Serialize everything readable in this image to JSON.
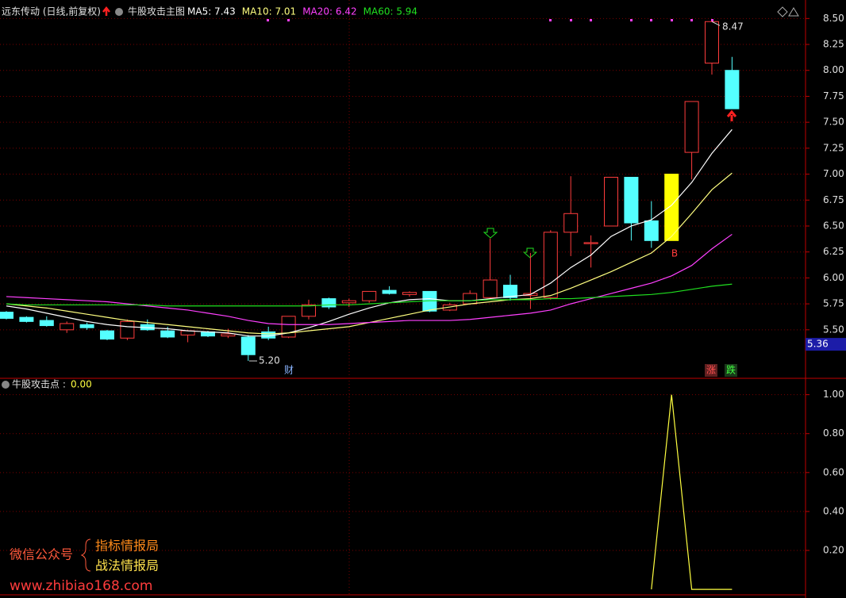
{
  "chart_data": [
    {
      "type": "candlestick",
      "title": "远东传动 (日线,前复权)",
      "indicator": "牛股攻击主图",
      "open": [
        5.67,
        5.62,
        5.59,
        5.5,
        5.55,
        5.49,
        5.42,
        5.55,
        5.49,
        5.45,
        5.48,
        5.44,
        5.43,
        5.48,
        5.43,
        5.63,
        5.8,
        5.76,
        5.78,
        5.88,
        5.84,
        5.87,
        5.69,
        5.75,
        5.81,
        5.93,
        5.83,
        5.81,
        6.44,
        6.33,
        6.5,
        6.97,
        6.55,
        6.36,
        7.21,
        8.07,
        8.0
      ],
      "high": [
        5.68,
        5.63,
        5.63,
        5.58,
        5.57,
        5.5,
        5.6,
        5.6,
        5.53,
        5.5,
        5.49,
        5.51,
        5.45,
        5.53,
        5.63,
        5.79,
        5.81,
        5.8,
        5.87,
        5.92,
        5.87,
        5.87,
        5.76,
        5.88,
        6.38,
        6.03,
        6.24,
        6.46,
        6.98,
        6.41,
        6.97,
        6.97,
        6.74,
        7.0,
        7.7,
        8.47,
        8.13
      ],
      "low": [
        5.6,
        5.57,
        5.53,
        5.47,
        5.5,
        5.4,
        5.4,
        5.49,
        5.42,
        5.38,
        5.43,
        5.42,
        5.2,
        5.4,
        5.42,
        5.6,
        5.7,
        5.72,
        5.76,
        5.84,
        5.82,
        5.67,
        5.68,
        5.74,
        5.8,
        5.78,
        5.7,
        5.79,
        6.21,
        6.1,
        6.5,
        6.36,
        6.29,
        6.36,
        6.95,
        7.96,
        7.63
      ],
      "close": [
        5.61,
        5.58,
        5.54,
        5.56,
        5.52,
        5.41,
        5.58,
        5.5,
        5.43,
        5.49,
        5.44,
        5.46,
        5.26,
        5.42,
        5.63,
        5.74,
        5.72,
        5.78,
        5.87,
        5.85,
        5.86,
        5.68,
        5.74,
        5.85,
        5.98,
        5.81,
        5.85,
        6.44,
        6.62,
        6.34,
        6.97,
        6.53,
        6.36,
        7.0,
        7.7,
        8.47,
        7.63
      ],
      "up_color": "#ff3c3c",
      "colors": [
        "#54ffff",
        "#54ffff",
        "#54ffff",
        "#ff3c3c",
        "#54ffff",
        "#54ffff",
        "#ff3c3c",
        "#54ffff",
        "#54ffff",
        "#ff3c3c",
        "#54ffff",
        "#ff3c3c",
        "#54ffff",
        "#54ffff",
        "#ff3c3c",
        "#ff3c3c",
        "#54ffff",
        "#ff3c3c",
        "#ff3c3c",
        "#54ffff",
        "#ff3c3c",
        "#54ffff",
        "#ff3c3c",
        "#ff3c3c",
        "#ff3c3c",
        "#54ffff",
        "#ff3c3c",
        "#ff3c3c",
        "#ff3c3c",
        "#ff3c3c",
        "#ff3c3c",
        "#54ffff",
        "#54ffff",
        "#ffff00",
        "#ff3c3c",
        "#ff3c3c",
        "#54ffff"
      ],
      "series": [
        {
          "name": "MA5: 7.43",
          "color": "#ffffff",
          "values": [
            5.73,
            5.7,
            5.66,
            5.62,
            5.58,
            5.55,
            5.53,
            5.52,
            5.51,
            5.49,
            5.48,
            5.47,
            5.44,
            5.44,
            5.47,
            5.52,
            5.58,
            5.65,
            5.71,
            5.76,
            5.79,
            5.8,
            5.78,
            5.78,
            5.8,
            5.82,
            5.84,
            5.95,
            6.1,
            6.22,
            6.4,
            6.5,
            6.56,
            6.7,
            6.92,
            7.2,
            7.43
          ]
        },
        {
          "name": "MA10: 7.01",
          "color": "#ffff80",
          "values": [
            5.75,
            5.73,
            5.71,
            5.68,
            5.65,
            5.62,
            5.59,
            5.57,
            5.55,
            5.53,
            5.51,
            5.49,
            5.47,
            5.46,
            5.47,
            5.49,
            5.51,
            5.53,
            5.57,
            5.61,
            5.65,
            5.69,
            5.72,
            5.75,
            5.77,
            5.79,
            5.8,
            5.83,
            5.9,
            5.98,
            6.06,
            6.15,
            6.24,
            6.4,
            6.62,
            6.85,
            7.01
          ]
        },
        {
          "name": "MA20: 6.42",
          "color": "#ff40ff",
          "values": [
            5.82,
            5.81,
            5.8,
            5.79,
            5.78,
            5.77,
            5.75,
            5.73,
            5.71,
            5.69,
            5.66,
            5.63,
            5.59,
            5.56,
            5.55,
            5.55,
            5.55,
            5.56,
            5.57,
            5.58,
            5.59,
            5.59,
            5.59,
            5.6,
            5.62,
            5.64,
            5.66,
            5.69,
            5.75,
            5.8,
            5.85,
            5.9,
            5.95,
            6.02,
            6.12,
            6.28,
            6.42
          ]
        },
        {
          "name": "MA60: 5.94",
          "color": "#20e020",
          "values": [
            5.75,
            5.74,
            5.74,
            5.74,
            5.74,
            5.74,
            5.74,
            5.74,
            5.73,
            5.73,
            5.73,
            5.73,
            5.73,
            5.73,
            5.73,
            5.73,
            5.74,
            5.74,
            5.75,
            5.76,
            5.77,
            5.78,
            5.78,
            5.78,
            5.79,
            5.79,
            5.79,
            5.8,
            5.8,
            5.81,
            5.82,
            5.83,
            5.84,
            5.86,
            5.89,
            5.92,
            5.94
          ]
        }
      ],
      "ylim": [
        5.04,
        8.64
      ],
      "yticks": [
        {
          "value": 5.5,
          "label": "5.50"
        },
        {
          "value": 5.75,
          "label": "5.75"
        },
        {
          "value": 6,
          "label": "6.00"
        },
        {
          "value": 6.25,
          "label": "6.25"
        },
        {
          "value": 6.5,
          "label": "6.50"
        },
        {
          "value": 6.75,
          "label": "6.75"
        },
        {
          "value": 7,
          "label": "7.00"
        },
        {
          "value": 7.25,
          "label": "7.25"
        },
        {
          "value": 7.5,
          "label": "7.50"
        },
        {
          "value": 7.75,
          "label": "7.75"
        },
        {
          "value": 8,
          "label": "8.00"
        },
        {
          "value": 8.25,
          "label": "8.25"
        },
        {
          "value": 8.5,
          "label": "8.50"
        }
      ],
      "grid": true,
      "high_marker": 8.47,
      "low_marker": {
        "value": 5.2,
        "label": "5.20"
      },
      "last_price": 5.36,
      "annotations": [
        "财",
        "B",
        "涨",
        "跌"
      ]
    },
    {
      "type": "line",
      "title": "牛股攻击点 :",
      "value_label": "0.00",
      "color": "#ffff40",
      "values": [
        null,
        null,
        null,
        null,
        null,
        null,
        null,
        null,
        null,
        null,
        null,
        null,
        null,
        null,
        null,
        null,
        null,
        null,
        null,
        null,
        null,
        null,
        null,
        null,
        null,
        null,
        null,
        null,
        null,
        null,
        null,
        null,
        0,
        1,
        0,
        0,
        0
      ],
      "ylim": [
        -0.02,
        1.08
      ],
      "yticks": [
        {
          "value": 0.2,
          "label": "0.20"
        },
        {
          "value": 0.4,
          "label": "0.40"
        },
        {
          "value": 0.6,
          "label": "0.60"
        },
        {
          "value": 0.8,
          "label": "0.80"
        },
        {
          "value": 1,
          "label": "1.00"
        }
      ],
      "grid": true
    }
  ],
  "watermark": {
    "account": "微信公众号",
    "line1": "指标情报局",
    "line2": "战法情报局",
    "url": "www.zhibiao168.com"
  }
}
